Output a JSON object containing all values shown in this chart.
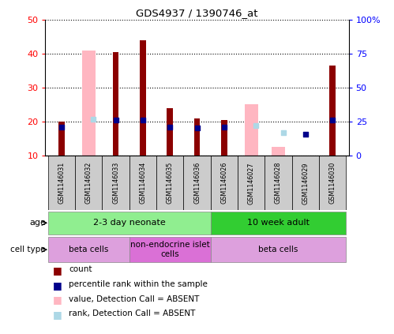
{
  "title": "GDS4937 / 1390746_at",
  "samples": [
    "GSM1146031",
    "GSM1146032",
    "GSM1146033",
    "GSM1146034",
    "GSM1146035",
    "GSM1146036",
    "GSM1146026",
    "GSM1146027",
    "GSM1146028",
    "GSM1146029",
    "GSM1146030"
  ],
  "count_values": [
    20,
    null,
    40.5,
    44,
    24,
    21,
    20.5,
    null,
    null,
    10,
    36.5
  ],
  "rank_values": [
    21,
    null,
    26,
    26,
    21,
    20,
    21,
    null,
    null,
    15.5,
    26
  ],
  "absent_value_values": [
    null,
    41,
    null,
    null,
    null,
    null,
    null,
    25,
    12.5,
    null,
    null
  ],
  "absent_rank_values": [
    null,
    26.5,
    null,
    null,
    null,
    null,
    null,
    22,
    17,
    null,
    null
  ],
  "ylim_left": [
    10,
    50
  ],
  "ylim_right": [
    0,
    100
  ],
  "yticks_left": [
    10,
    20,
    30,
    40,
    50
  ],
  "yticks_right": [
    0,
    25,
    50,
    75,
    100
  ],
  "ytick_labels_left": [
    "10",
    "20",
    "30",
    "40",
    "50"
  ],
  "ytick_labels_right": [
    "0",
    "25",
    "50",
    "75",
    "100%"
  ],
  "color_count": "#8B0000",
  "color_rank": "#00008B",
  "color_absent_value": "#FFB6C1",
  "color_absent_rank": "#ADD8E6",
  "age_groups": [
    {
      "label": "2-3 day neonate",
      "start": 0,
      "end": 6,
      "color": "#90EE90"
    },
    {
      "label": "10 week adult",
      "start": 6,
      "end": 11,
      "color": "#32CD32"
    }
  ],
  "cell_type_groups": [
    {
      "label": "beta cells",
      "start": 0,
      "end": 3,
      "color": "#DDA0DD"
    },
    {
      "label": "non-endocrine islet\ncells",
      "start": 3,
      "end": 6,
      "color": "#DA70D6"
    },
    {
      "label": "beta cells",
      "start": 6,
      "end": 11,
      "color": "#DDA0DD"
    }
  ],
  "legend_items": [
    {
      "label": "count",
      "color": "#8B0000"
    },
    {
      "label": "percentile rank within the sample",
      "color": "#00008B"
    },
    {
      "label": "value, Detection Call = ABSENT",
      "color": "#FFB6C1"
    },
    {
      "label": "rank, Detection Call = ABSENT",
      "color": "#ADD8E6"
    }
  ],
  "bar_width": 0.35,
  "absent_bar_width": 0.5,
  "count_bar_width": 0.22
}
